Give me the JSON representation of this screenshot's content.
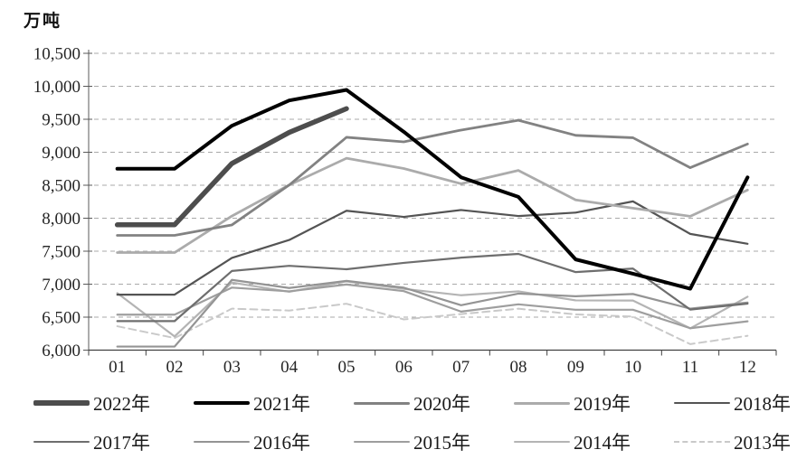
{
  "chart_data": {
    "type": "line",
    "title": "",
    "unit_label": "万吨",
    "xlabel": "",
    "ylabel": "万吨",
    "categories": [
      "01",
      "02",
      "03",
      "04",
      "05",
      "06",
      "07",
      "08",
      "09",
      "10",
      "11",
      "12"
    ],
    "ylim": [
      6000,
      10500
    ],
    "ytick_step": 500,
    "ytick_labels": [
      "6,000",
      "6,500",
      "7,000",
      "7,500",
      "8,000",
      "8,500",
      "9,000",
      "9,500",
      "10,000",
      "10,500"
    ],
    "grid": "horizontal-dashed",
    "legend_position": "bottom-two-rows",
    "series": [
      {
        "name": "2022年",
        "color": "#4d4d4d",
        "width": 5.5,
        "dash": null,
        "values": [
          7900,
          7900,
          8830,
          9300,
          9661
        ]
      },
      {
        "name": "2021年",
        "color": "#000000",
        "width": 4,
        "dash": null,
        "values": [
          8750,
          8750,
          9402,
          9785,
          9945,
          9310,
          8620,
          8324,
          7375,
          7158,
          6931,
          8619
        ]
      },
      {
        "name": "2020年",
        "color": "#828282",
        "width": 2.8,
        "dash": null,
        "values": [
          7740,
          7740,
          7898,
          8503,
          9227,
          9158,
          9336,
          9485,
          9256,
          9220,
          8766,
          9125
        ]
      },
      {
        "name": "2019年",
        "color": "#ababab",
        "width": 2.8,
        "dash": null,
        "values": [
          7479,
          7479,
          8033,
          8503,
          8909,
          8753,
          8522,
          8725,
          8277,
          8152,
          8029,
          8427
        ]
      },
      {
        "name": "2018年",
        "color": "#545454",
        "width": 2.2,
        "dash": null,
        "values": [
          6841,
          6841,
          7398,
          7670,
          8113,
          8020,
          8124,
          8033,
          8085,
          8255,
          7762,
          7612
        ]
      },
      {
        "name": "2017年",
        "color": "#6e6e6e",
        "width": 2.2,
        "dash": null,
        "values": [
          6440,
          6440,
          7200,
          7278,
          7226,
          7323,
          7402,
          7459,
          7183,
          7236,
          6615,
          6705
        ]
      },
      {
        "name": "2016年",
        "color": "#949494",
        "width": 2.2,
        "dash": null,
        "values": [
          6054,
          6054,
          7065,
          6942,
          7050,
          6947,
          6681,
          6857,
          6817,
          6851,
          6629,
          6722
        ]
      },
      {
        "name": "2015年",
        "color": "#9e9e9e",
        "width": 2.2,
        "dash": null,
        "values": [
          6538,
          6538,
          6948,
          6891,
          6995,
          6895,
          6584,
          6694,
          6612,
          6612,
          6332,
          6437
        ]
      },
      {
        "name": "2014年",
        "color": "#b4b4b4",
        "width": 2.2,
        "dash": null,
        "values": [
          6865,
          6208,
          7025,
          6884,
          7043,
          6929,
          6832,
          6891,
          6754,
          6752,
          6330,
          6809
        ]
      },
      {
        "name": "2013年",
        "color": "#c9c9c9",
        "width": 2,
        "dash": "8 5",
        "values": [
          6362,
          6183,
          6629,
          6600,
          6703,
          6466,
          6547,
          6628,
          6542,
          6508,
          6091,
          6217
        ]
      }
    ]
  }
}
